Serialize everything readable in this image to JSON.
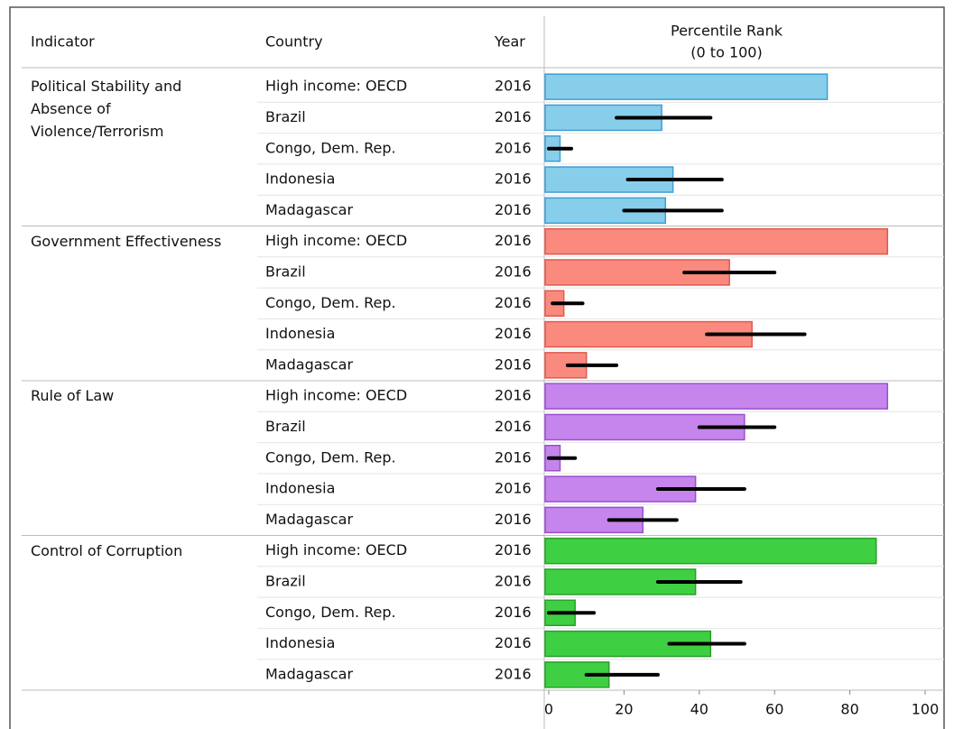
{
  "chart_data": {
    "type": "bar",
    "orientation": "horizontal",
    "title": "Percentile Rank",
    "subtitle": "(0 to 100)",
    "columns": [
      "Indicator",
      "Country",
      "Year"
    ],
    "xlim": [
      0,
      100
    ],
    "xticks": [
      0,
      20,
      40,
      60,
      80,
      100
    ],
    "groups": [
      {
        "name": "Political Stability and Absence of Violence/Terrorism",
        "color": "#87ceeb",
        "edge_color": "#3d9fd4",
        "countries": [
          "High income: OECD",
          "Brazil",
          "Congo, Dem. Rep.",
          "Indonesia",
          "Madagascar"
        ],
        "years": [
          2016,
          2016,
          2016,
          2016,
          2016
        ],
        "values": [
          74,
          30,
          3,
          33,
          31
        ],
        "lower": [
          null,
          18,
          0,
          21,
          20
        ],
        "upper": [
          null,
          43,
          6,
          46,
          46
        ]
      },
      {
        "name": "Government Effectiveness",
        "color": "#fa8a7e",
        "edge_color": "#e05a4e",
        "countries": [
          "High income: OECD",
          "Brazil",
          "Congo, Dem. Rep.",
          "Indonesia",
          "Madagascar"
        ],
        "years": [
          2016,
          2016,
          2016,
          2016,
          2016
        ],
        "values": [
          90,
          48,
          4,
          54,
          10
        ],
        "lower": [
          null,
          36,
          1,
          42,
          5
        ],
        "upper": [
          null,
          60,
          9,
          68,
          18
        ]
      },
      {
        "name": "Rule of Law",
        "color": "#c585ec",
        "edge_color": "#9b4fd0",
        "countries": [
          "High income: OECD",
          "Brazil",
          "Congo, Dem. Rep.",
          "Indonesia",
          "Madagascar"
        ],
        "years": [
          2016,
          2016,
          2016,
          2016,
          2016
        ],
        "values": [
          90,
          52,
          3,
          39,
          25
        ],
        "lower": [
          null,
          40,
          0,
          29,
          16
        ],
        "upper": [
          null,
          60,
          7,
          52,
          34
        ]
      },
      {
        "name": "Control of Corruption",
        "color": "#3fcf42",
        "edge_color": "#2a9f2c",
        "countries": [
          "High income: OECD",
          "Brazil",
          "Congo, Dem. Rep.",
          "Indonesia",
          "Madagascar"
        ],
        "years": [
          2016,
          2016,
          2016,
          2016,
          2016
        ],
        "values": [
          87,
          39,
          7,
          43,
          16
        ],
        "lower": [
          null,
          29,
          0,
          32,
          10
        ],
        "upper": [
          null,
          51,
          12,
          52,
          29
        ]
      }
    ]
  }
}
